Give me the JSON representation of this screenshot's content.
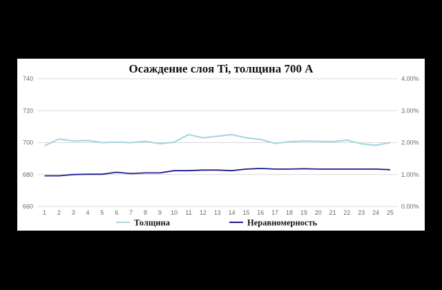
{
  "chart_data": {
    "type": "line",
    "title": "Осаждение слоя Ti, толщина 700 А",
    "xlabel": "",
    "ylabel": "",
    "y2label": "",
    "categories": [
      1,
      2,
      3,
      4,
      5,
      6,
      7,
      8,
      9,
      10,
      11,
      12,
      13,
      14,
      15,
      16,
      17,
      18,
      19,
      20,
      21,
      22,
      23,
      24,
      25
    ],
    "ylim": [
      660,
      740
    ],
    "y_ticks": [
      "660",
      "680",
      "700",
      "720",
      "740"
    ],
    "y2lim": [
      0,
      0.04
    ],
    "y2_ticks": [
      "0.00%",
      "1.00%",
      "2.00%",
      "3.00%",
      "4.00%"
    ],
    "grid": true,
    "legend_position": "bottom",
    "series": [
      {
        "name": "Толщина",
        "axis": "left",
        "color": "#a8d8dc",
        "values": [
          698,
          702.2,
          701,
          701.3,
          700,
          700.3,
          700,
          700.8,
          699.3,
          700.2,
          705,
          703,
          704,
          705,
          703,
          702,
          699.5,
          700.5,
          701,
          700.8,
          700.6,
          701.5,
          699.2,
          698.3,
          700
        ]
      },
      {
        "name": "Неравномерность",
        "axis": "right",
        "color": "#1a1a8c",
        "values": [
          0.0096,
          0.0096,
          0.01,
          0.0101,
          0.0101,
          0.0107,
          0.0103,
          0.0105,
          0.0105,
          0.0112,
          0.0112,
          0.0114,
          0.0114,
          0.0112,
          0.0117,
          0.0119,
          0.0117,
          0.0117,
          0.0118,
          0.0117,
          0.0117,
          0.0117,
          0.0117,
          0.0117,
          0.0115
        ]
      }
    ]
  }
}
